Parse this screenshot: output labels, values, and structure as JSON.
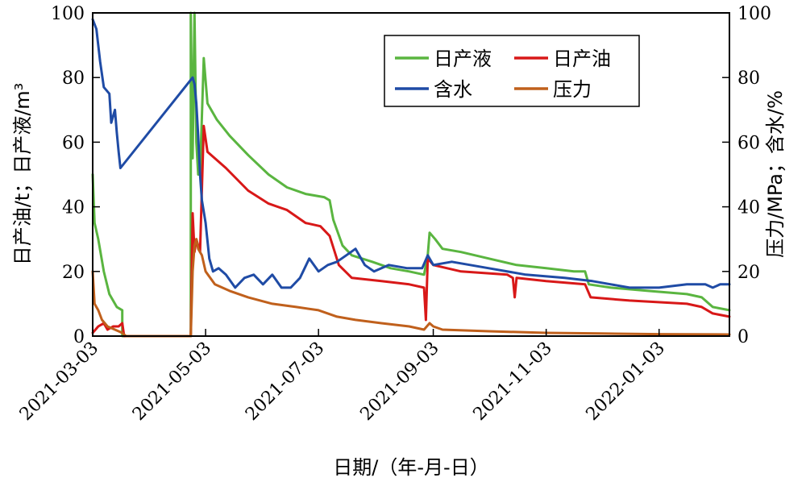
{
  "chart_data": {
    "type": "line",
    "xlabel": "日期/（年-月-日）",
    "ylabel_left": "日产油/t；日产液/m³",
    "ylabel_right": "压力/MPa；含水/%",
    "ylim_left": [
      0,
      100
    ],
    "ylim_right": [
      0,
      100
    ],
    "xlim": [
      "2021-03-03",
      "2022-02-10"
    ],
    "yticks_left": [
      "0",
      "20",
      "40",
      "60",
      "80",
      "100"
    ],
    "yticks_right": [
      "0",
      "20",
      "40",
      "60",
      "80",
      "100"
    ],
    "xticks": [
      "2021-03-03",
      "2021-05-03",
      "2021-07-03",
      "2021-09-03",
      "2021-11-03",
      "2022-01-03"
    ],
    "grid": false,
    "legend_position": "top-right",
    "series": [
      {
        "name": "日产液",
        "color": "#5ab540",
        "axis": "left",
        "points": [
          [
            "2021-03-03",
            50
          ],
          [
            "2021-03-04",
            35
          ],
          [
            "2021-03-06",
            30
          ],
          [
            "2021-03-09",
            20
          ],
          [
            "2021-03-12",
            13
          ],
          [
            "2021-03-16",
            9
          ],
          [
            "2021-03-19",
            8
          ],
          [
            "2021-03-19",
            0
          ],
          [
            "2021-04-25",
            0
          ],
          [
            "2021-04-25",
            100
          ],
          [
            "2021-04-26",
            55
          ],
          [
            "2021-04-27",
            100
          ],
          [
            "2021-04-28",
            60
          ],
          [
            "2021-04-29",
            50
          ],
          [
            "2021-04-30",
            50
          ],
          [
            "2021-05-02",
            86
          ],
          [
            "2021-05-04",
            72
          ],
          [
            "2021-05-09",
            67
          ],
          [
            "2021-05-16",
            62
          ],
          [
            "2021-05-26",
            56
          ],
          [
            "2021-06-06",
            50
          ],
          [
            "2021-06-16",
            46
          ],
          [
            "2021-06-26",
            44
          ],
          [
            "2021-07-06",
            43
          ],
          [
            "2021-07-09",
            42
          ],
          [
            "2021-07-11",
            36
          ],
          [
            "2021-07-16",
            28
          ],
          [
            "2021-07-21",
            25
          ],
          [
            "2021-08-01",
            23
          ],
          [
            "2021-08-11",
            21
          ],
          [
            "2021-08-21",
            20
          ],
          [
            "2021-08-29",
            19
          ],
          [
            "2021-08-31",
            25
          ],
          [
            "2021-09-01",
            32
          ],
          [
            "2021-09-04",
            30
          ],
          [
            "2021-09-08",
            27
          ],
          [
            "2021-09-18",
            26
          ],
          [
            "2021-10-03",
            24
          ],
          [
            "2021-10-18",
            22
          ],
          [
            "2021-11-03",
            21
          ],
          [
            "2021-11-18",
            20
          ],
          [
            "2021-11-24",
            20
          ],
          [
            "2021-11-26",
            16
          ],
          [
            "2021-12-08",
            15
          ],
          [
            "2021-12-28",
            14
          ],
          [
            "2022-01-18",
            13
          ],
          [
            "2022-01-26",
            12
          ],
          [
            "2022-02-01",
            9
          ],
          [
            "2022-02-10",
            8
          ]
        ]
      },
      {
        "name": "日产油",
        "color": "#d81818",
        "axis": "left",
        "points": [
          [
            "2021-03-03",
            1
          ],
          [
            "2021-03-06",
            3
          ],
          [
            "2021-03-09",
            4
          ],
          [
            "2021-03-11",
            2
          ],
          [
            "2021-03-14",
            3
          ],
          [
            "2021-03-17",
            3
          ],
          [
            "2021-03-19",
            4
          ],
          [
            "2021-03-20",
            0
          ],
          [
            "2021-04-25",
            0
          ],
          [
            "2021-04-26",
            38
          ],
          [
            "2021-04-27",
            26
          ],
          [
            "2021-04-28",
            30
          ],
          [
            "2021-04-30",
            26
          ],
          [
            "2021-05-02",
            65
          ],
          [
            "2021-05-04",
            57
          ],
          [
            "2021-05-14",
            52
          ],
          [
            "2021-05-26",
            45
          ],
          [
            "2021-06-06",
            41
          ],
          [
            "2021-06-16",
            39
          ],
          [
            "2021-06-26",
            35
          ],
          [
            "2021-07-04",
            34
          ],
          [
            "2021-07-09",
            31
          ],
          [
            "2021-07-14",
            22
          ],
          [
            "2021-07-21",
            18
          ],
          [
            "2021-08-06",
            17
          ],
          [
            "2021-08-21",
            16
          ],
          [
            "2021-08-29",
            15
          ],
          [
            "2021-08-30",
            5
          ],
          [
            "2021-08-31",
            24
          ],
          [
            "2021-09-03",
            22
          ],
          [
            "2021-09-18",
            20
          ],
          [
            "2021-10-13",
            19
          ],
          [
            "2021-10-16",
            18
          ],
          [
            "2021-10-17",
            12
          ],
          [
            "2021-10-18",
            18
          ],
          [
            "2021-11-03",
            17
          ],
          [
            "2021-11-24",
            16
          ],
          [
            "2021-11-27",
            12
          ],
          [
            "2021-12-18",
            11
          ],
          [
            "2022-01-18",
            10
          ],
          [
            "2022-01-26",
            9
          ],
          [
            "2022-02-01",
            7
          ],
          [
            "2022-02-10",
            6
          ]
        ]
      },
      {
        "name": "含水",
        "color": "#1f4ba5",
        "axis": "right",
        "points": [
          [
            "2021-03-03",
            98
          ],
          [
            "2021-03-05",
            95
          ],
          [
            "2021-03-07",
            85
          ],
          [
            "2021-03-09",
            77
          ],
          [
            "2021-03-12",
            75
          ],
          [
            "2021-03-13",
            66
          ],
          [
            "2021-03-15",
            70
          ],
          [
            "2021-03-16",
            63
          ],
          [
            "2021-03-17",
            57
          ],
          [
            "2021-03-18",
            52
          ],
          [
            "2021-04-26",
            80
          ],
          [
            "2021-04-27",
            78
          ],
          [
            "2021-04-28",
            72
          ],
          [
            "2021-04-29",
            62
          ],
          [
            "2021-04-30",
            50
          ],
          [
            "2021-05-01",
            42
          ],
          [
            "2021-05-03",
            35
          ],
          [
            "2021-05-05",
            24
          ],
          [
            "2021-05-07",
            20
          ],
          [
            "2021-05-10",
            21
          ],
          [
            "2021-05-14",
            19
          ],
          [
            "2021-05-19",
            15
          ],
          [
            "2021-05-24",
            18
          ],
          [
            "2021-05-29",
            19
          ],
          [
            "2021-06-03",
            16
          ],
          [
            "2021-06-08",
            19
          ],
          [
            "2021-06-13",
            15
          ],
          [
            "2021-06-18",
            15
          ],
          [
            "2021-06-23",
            18
          ],
          [
            "2021-06-28",
            24
          ],
          [
            "2021-07-03",
            20
          ],
          [
            "2021-07-08",
            22
          ],
          [
            "2021-07-13",
            23
          ],
          [
            "2021-07-18",
            25
          ],
          [
            "2021-07-23",
            27
          ],
          [
            "2021-07-28",
            22
          ],
          [
            "2021-08-02",
            20
          ],
          [
            "2021-08-10",
            22
          ],
          [
            "2021-08-20",
            21
          ],
          [
            "2021-08-28",
            21
          ],
          [
            "2021-08-31",
            25
          ],
          [
            "2021-09-03",
            22
          ],
          [
            "2021-09-13",
            23
          ],
          [
            "2021-09-23",
            22
          ],
          [
            "2021-10-03",
            21
          ],
          [
            "2021-10-23",
            19
          ],
          [
            "2021-11-13",
            18
          ],
          [
            "2021-11-28",
            17
          ],
          [
            "2021-12-08",
            16
          ],
          [
            "2021-12-18",
            15
          ],
          [
            "2022-01-03",
            15
          ],
          [
            "2022-01-18",
            16
          ],
          [
            "2022-01-28",
            16
          ],
          [
            "2022-02-01",
            15
          ],
          [
            "2022-02-05",
            16
          ],
          [
            "2022-02-10",
            16
          ]
        ]
      },
      {
        "name": "压力",
        "color": "#c0601c",
        "axis": "right",
        "points": [
          [
            "2021-03-03",
            20
          ],
          [
            "2021-03-04",
            10
          ],
          [
            "2021-03-06",
            8
          ],
          [
            "2021-03-08",
            5
          ],
          [
            "2021-03-11",
            3
          ],
          [
            "2021-03-15",
            2
          ],
          [
            "2021-03-19",
            1
          ],
          [
            "2021-03-21",
            0
          ],
          [
            "2021-04-25",
            0
          ],
          [
            "2021-04-26",
            20
          ],
          [
            "2021-04-27",
            28
          ],
          [
            "2021-04-28",
            30
          ],
          [
            "2021-04-29",
            27
          ],
          [
            "2021-05-01",
            25
          ],
          [
            "2021-05-03",
            20
          ],
          [
            "2021-05-08",
            16
          ],
          [
            "2021-05-16",
            14
          ],
          [
            "2021-05-26",
            12
          ],
          [
            "2021-06-08",
            10
          ],
          [
            "2021-06-21",
            9
          ],
          [
            "2021-07-03",
            8
          ],
          [
            "2021-07-13",
            6
          ],
          [
            "2021-07-23",
            5
          ],
          [
            "2021-08-06",
            4
          ],
          [
            "2021-08-21",
            3
          ],
          [
            "2021-08-29",
            2
          ],
          [
            "2021-09-01",
            4
          ],
          [
            "2021-09-03",
            3
          ],
          [
            "2021-09-08",
            2
          ],
          [
            "2021-10-03",
            1.5
          ],
          [
            "2021-11-03",
            1
          ],
          [
            "2021-12-03",
            0.8
          ],
          [
            "2022-01-03",
            0.6
          ],
          [
            "2022-02-10",
            0.5
          ]
        ]
      }
    ]
  }
}
